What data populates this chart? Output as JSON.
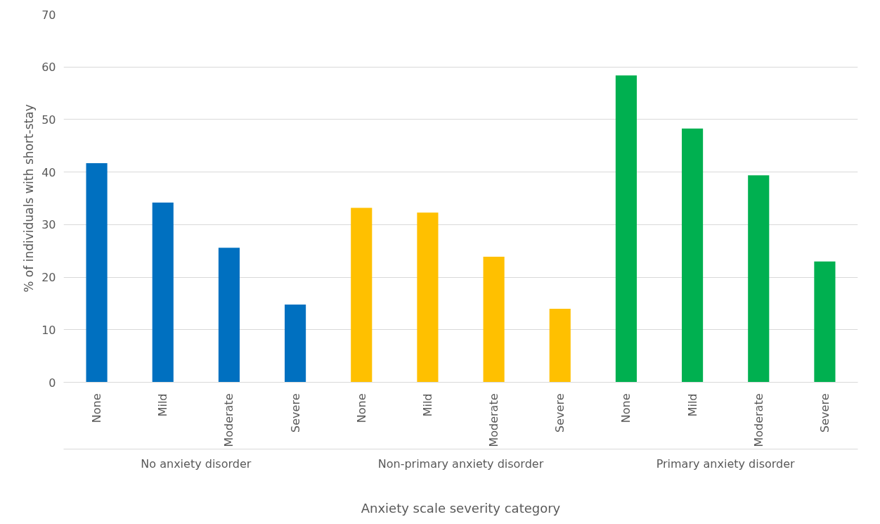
{
  "chart_data": {
    "type": "bar",
    "xlabel": "Anxiety scale severity category",
    "ylabel": "% of individuals with short-stay",
    "categories": [
      "None",
      "Mild",
      "Moderate",
      "Severe",
      "None",
      "Mild",
      "Moderate",
      "Severe",
      "None",
      "Mild",
      "Moderate",
      "Severe"
    ],
    "series": [
      {
        "color": "#0070c0",
        "values": [
          41.7,
          34.2,
          25.6,
          14.8,
          null,
          null,
          null,
          null,
          null,
          null,
          null,
          null
        ]
      },
      {
        "color": "#ffc000",
        "values": [
          null,
          null,
          null,
          null,
          33.2,
          32.3,
          23.9,
          14.0,
          null,
          null,
          null,
          null
        ]
      },
      {
        "color": "#00b050",
        "values": [
          null,
          null,
          null,
          null,
          null,
          null,
          null,
          null,
          58.4,
          48.3,
          39.4,
          23.0
        ]
      }
    ],
    "ylim": [
      0,
      70
    ],
    "yticks": [
      0,
      10,
      20,
      30,
      40,
      50,
      60,
      70
    ],
    "grid": "y",
    "annotations": [
      "No anxiety disorder",
      "Non-primary anxiety disorder",
      "Primary anxiety disorder"
    ]
  }
}
